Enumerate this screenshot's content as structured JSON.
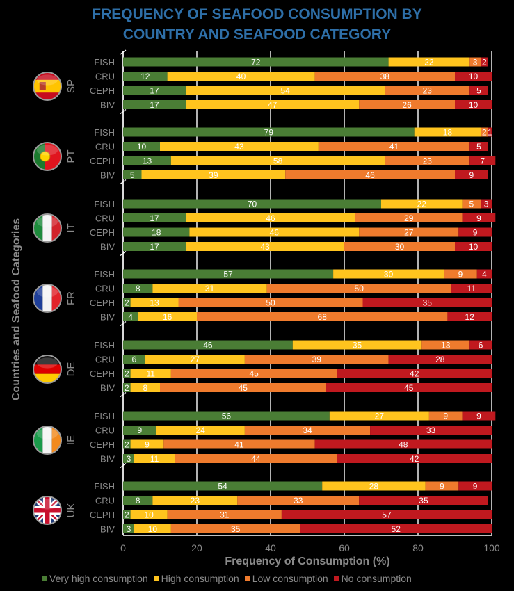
{
  "chart_data": {
    "type": "bar",
    "stacked": true,
    "orientation": "horizontal",
    "title": [
      "FREQUENCY OF SEAFOOD CONSUMPTION BY",
      "COUNTRY AND SEAFOOD CATEGORY"
    ],
    "xlabel": "Frequency of Consumption (%)",
    "ylabel": "Countries and Seafood Categories",
    "xlim": [
      0,
      100
    ],
    "xticks": [
      0,
      20,
      40,
      60,
      80,
      100
    ],
    "grid": true,
    "legend_position": "bottom",
    "series": [
      {
        "name": "Very high consumption",
        "color": "#4a7d35"
      },
      {
        "name": "High consumption",
        "color": "#ffc41e"
      },
      {
        "name": "Low consumption",
        "color": "#ef7b2d"
      },
      {
        "name": "No consumption",
        "color": "#c0191f"
      }
    ],
    "groups": [
      {
        "country": "SP",
        "flag": "spain-flag",
        "rows": [
          {
            "label": "FISH",
            "values": [
              72,
              22,
              3,
              2
            ]
          },
          {
            "label": "CRU",
            "values": [
              12,
              40,
              38,
              10
            ]
          },
          {
            "label": "CEPH",
            "values": [
              17,
              54,
              23,
              5
            ]
          },
          {
            "label": "BIV",
            "values": [
              17,
              47,
              26,
              10
            ]
          }
        ]
      },
      {
        "country": "PT",
        "flag": "portugal-flag",
        "rows": [
          {
            "label": "FISH",
            "values": [
              79,
              18,
              2,
              1
            ]
          },
          {
            "label": "CRU",
            "values": [
              10,
              43,
              41,
              5
            ]
          },
          {
            "label": "CEPH",
            "values": [
              13,
              58,
              23,
              7
            ]
          },
          {
            "label": "BIV",
            "values": [
              5,
              39,
              46,
              9
            ]
          }
        ]
      },
      {
        "country": "IT",
        "flag": "italy-flag",
        "rows": [
          {
            "label": "FISH",
            "values": [
              70,
              22,
              5,
              3
            ]
          },
          {
            "label": "CRU",
            "values": [
              17,
              46,
              29,
              9
            ]
          },
          {
            "label": "CEPH",
            "values": [
              18,
              46,
              27,
              9
            ]
          },
          {
            "label": "BIV",
            "values": [
              17,
              43,
              30,
              10
            ]
          }
        ]
      },
      {
        "country": "FR",
        "flag": "france-flag",
        "rows": [
          {
            "label": "FISH",
            "values": [
              57,
              30,
              9,
              4
            ]
          },
          {
            "label": "CRU",
            "values": [
              8,
              31,
              50,
              11
            ]
          },
          {
            "label": "CEPH",
            "values": [
              2,
              13,
              50,
              35
            ]
          },
          {
            "label": "BIV",
            "values": [
              4,
              16,
              68,
              12
            ]
          }
        ]
      },
      {
        "country": "DE",
        "flag": "germany-flag",
        "rows": [
          {
            "label": "FISH",
            "values": [
              46,
              35,
              13,
              6
            ]
          },
          {
            "label": "CRU",
            "values": [
              6,
              27,
              39,
              28
            ]
          },
          {
            "label": "CEPH",
            "values": [
              2,
              11,
              45,
              42
            ]
          },
          {
            "label": "BIV",
            "values": [
              2,
              8,
              45,
              45
            ]
          }
        ]
      },
      {
        "country": "IE",
        "flag": "ireland-flag",
        "rows": [
          {
            "label": "FISH",
            "values": [
              56,
              27,
              9,
              9
            ]
          },
          {
            "label": "CRU",
            "values": [
              9,
              24,
              34,
              33
            ]
          },
          {
            "label": "CEPH",
            "values": [
              2,
              9,
              41,
              48
            ]
          },
          {
            "label": "BIV",
            "values": [
              3,
              11,
              44,
              42
            ]
          }
        ]
      },
      {
        "country": "UK",
        "flag": "uk-flag",
        "rows": [
          {
            "label": "FISH",
            "values": [
              54,
              28,
              9,
              9
            ]
          },
          {
            "label": "CRU",
            "values": [
              8,
              23,
              33,
              35
            ]
          },
          {
            "label": "CEPH",
            "values": [
              2,
              10,
              31,
              57
            ]
          },
          {
            "label": "BIV",
            "values": [
              3,
              10,
              35,
              52
            ]
          }
        ]
      }
    ]
  }
}
